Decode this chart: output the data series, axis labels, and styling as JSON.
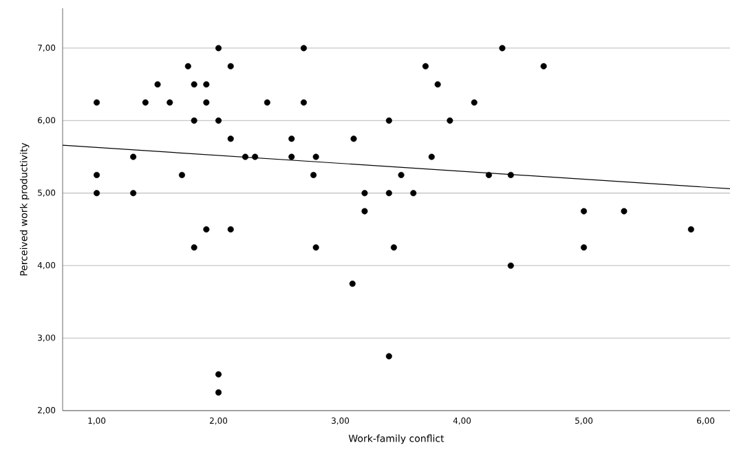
{
  "chart_data": {
    "type": "scatter",
    "xlabel": "Work-family conflict",
    "ylabel": "Perceived work productivity",
    "xlim": [
      0.72,
      6.2
    ],
    "ylim": [
      2,
      7.55
    ],
    "xticks": [
      {
        "value": 1,
        "label": "1,00"
      },
      {
        "value": 2,
        "label": "2,00"
      },
      {
        "value": 3,
        "label": "3,00"
      },
      {
        "value": 4,
        "label": "4,00"
      },
      {
        "value": 5,
        "label": "5,00"
      },
      {
        "value": 6,
        "label": "6,00"
      }
    ],
    "yticks": [
      {
        "value": 2,
        "label": "2,00"
      },
      {
        "value": 3,
        "label": "3,00"
      },
      {
        "value": 4,
        "label": "4,00"
      },
      {
        "value": 5,
        "label": "5,00"
      },
      {
        "value": 6,
        "label": "6,00"
      },
      {
        "value": 7,
        "label": "7,00"
      }
    ],
    "grid": "y",
    "series": [
      {
        "marker": "circle",
        "color": "#000000",
        "x": [
          2.0,
          2.7,
          1.75,
          2.1,
          1.5,
          1.8,
          1.9,
          1.0,
          1.4,
          1.6,
          1.9,
          2.4,
          2.7,
          1.8,
          2.0,
          2.1,
          2.6,
          1.3,
          2.22,
          2.3,
          2.6,
          1.0,
          1.7,
          1.0,
          1.3,
          1.9,
          2.1,
          1.8,
          2.0,
          2.0,
          4.33,
          3.7,
          3.8,
          4.1,
          3.4,
          3.9,
          3.11,
          2.8,
          3.75,
          2.78,
          3.5,
          4.22,
          4.4,
          3.2,
          3.4,
          3.6,
          3.2,
          2.8,
          3.44,
          4.4,
          3.1,
          3.4,
          4.67,
          5.0,
          5.33,
          5.88,
          5.0
        ],
        "values": [
          7.0,
          7.0,
          6.75,
          6.75,
          6.5,
          6.5,
          6.5,
          6.25,
          6.25,
          6.25,
          6.25,
          6.25,
          6.25,
          6.0,
          6.0,
          5.75,
          5.75,
          5.5,
          5.5,
          5.5,
          5.5,
          5.25,
          5.25,
          5.0,
          5.0,
          4.5,
          4.5,
          4.25,
          2.5,
          2.25,
          7.0,
          6.75,
          6.5,
          6.25,
          6.0,
          6.0,
          5.75,
          5.5,
          5.5,
          5.25,
          5.25,
          5.25,
          5.25,
          5.0,
          5.0,
          5.0,
          4.75,
          4.25,
          4.25,
          4.0,
          3.75,
          2.75,
          6.75,
          4.75,
          4.75,
          4.5,
          4.25
        ]
      },
      {
        "type": "line",
        "marker": "none",
        "color": "#000000",
        "x": [
          0.72,
          6.2
        ],
        "values": [
          5.66,
          5.06
        ]
      }
    ]
  }
}
